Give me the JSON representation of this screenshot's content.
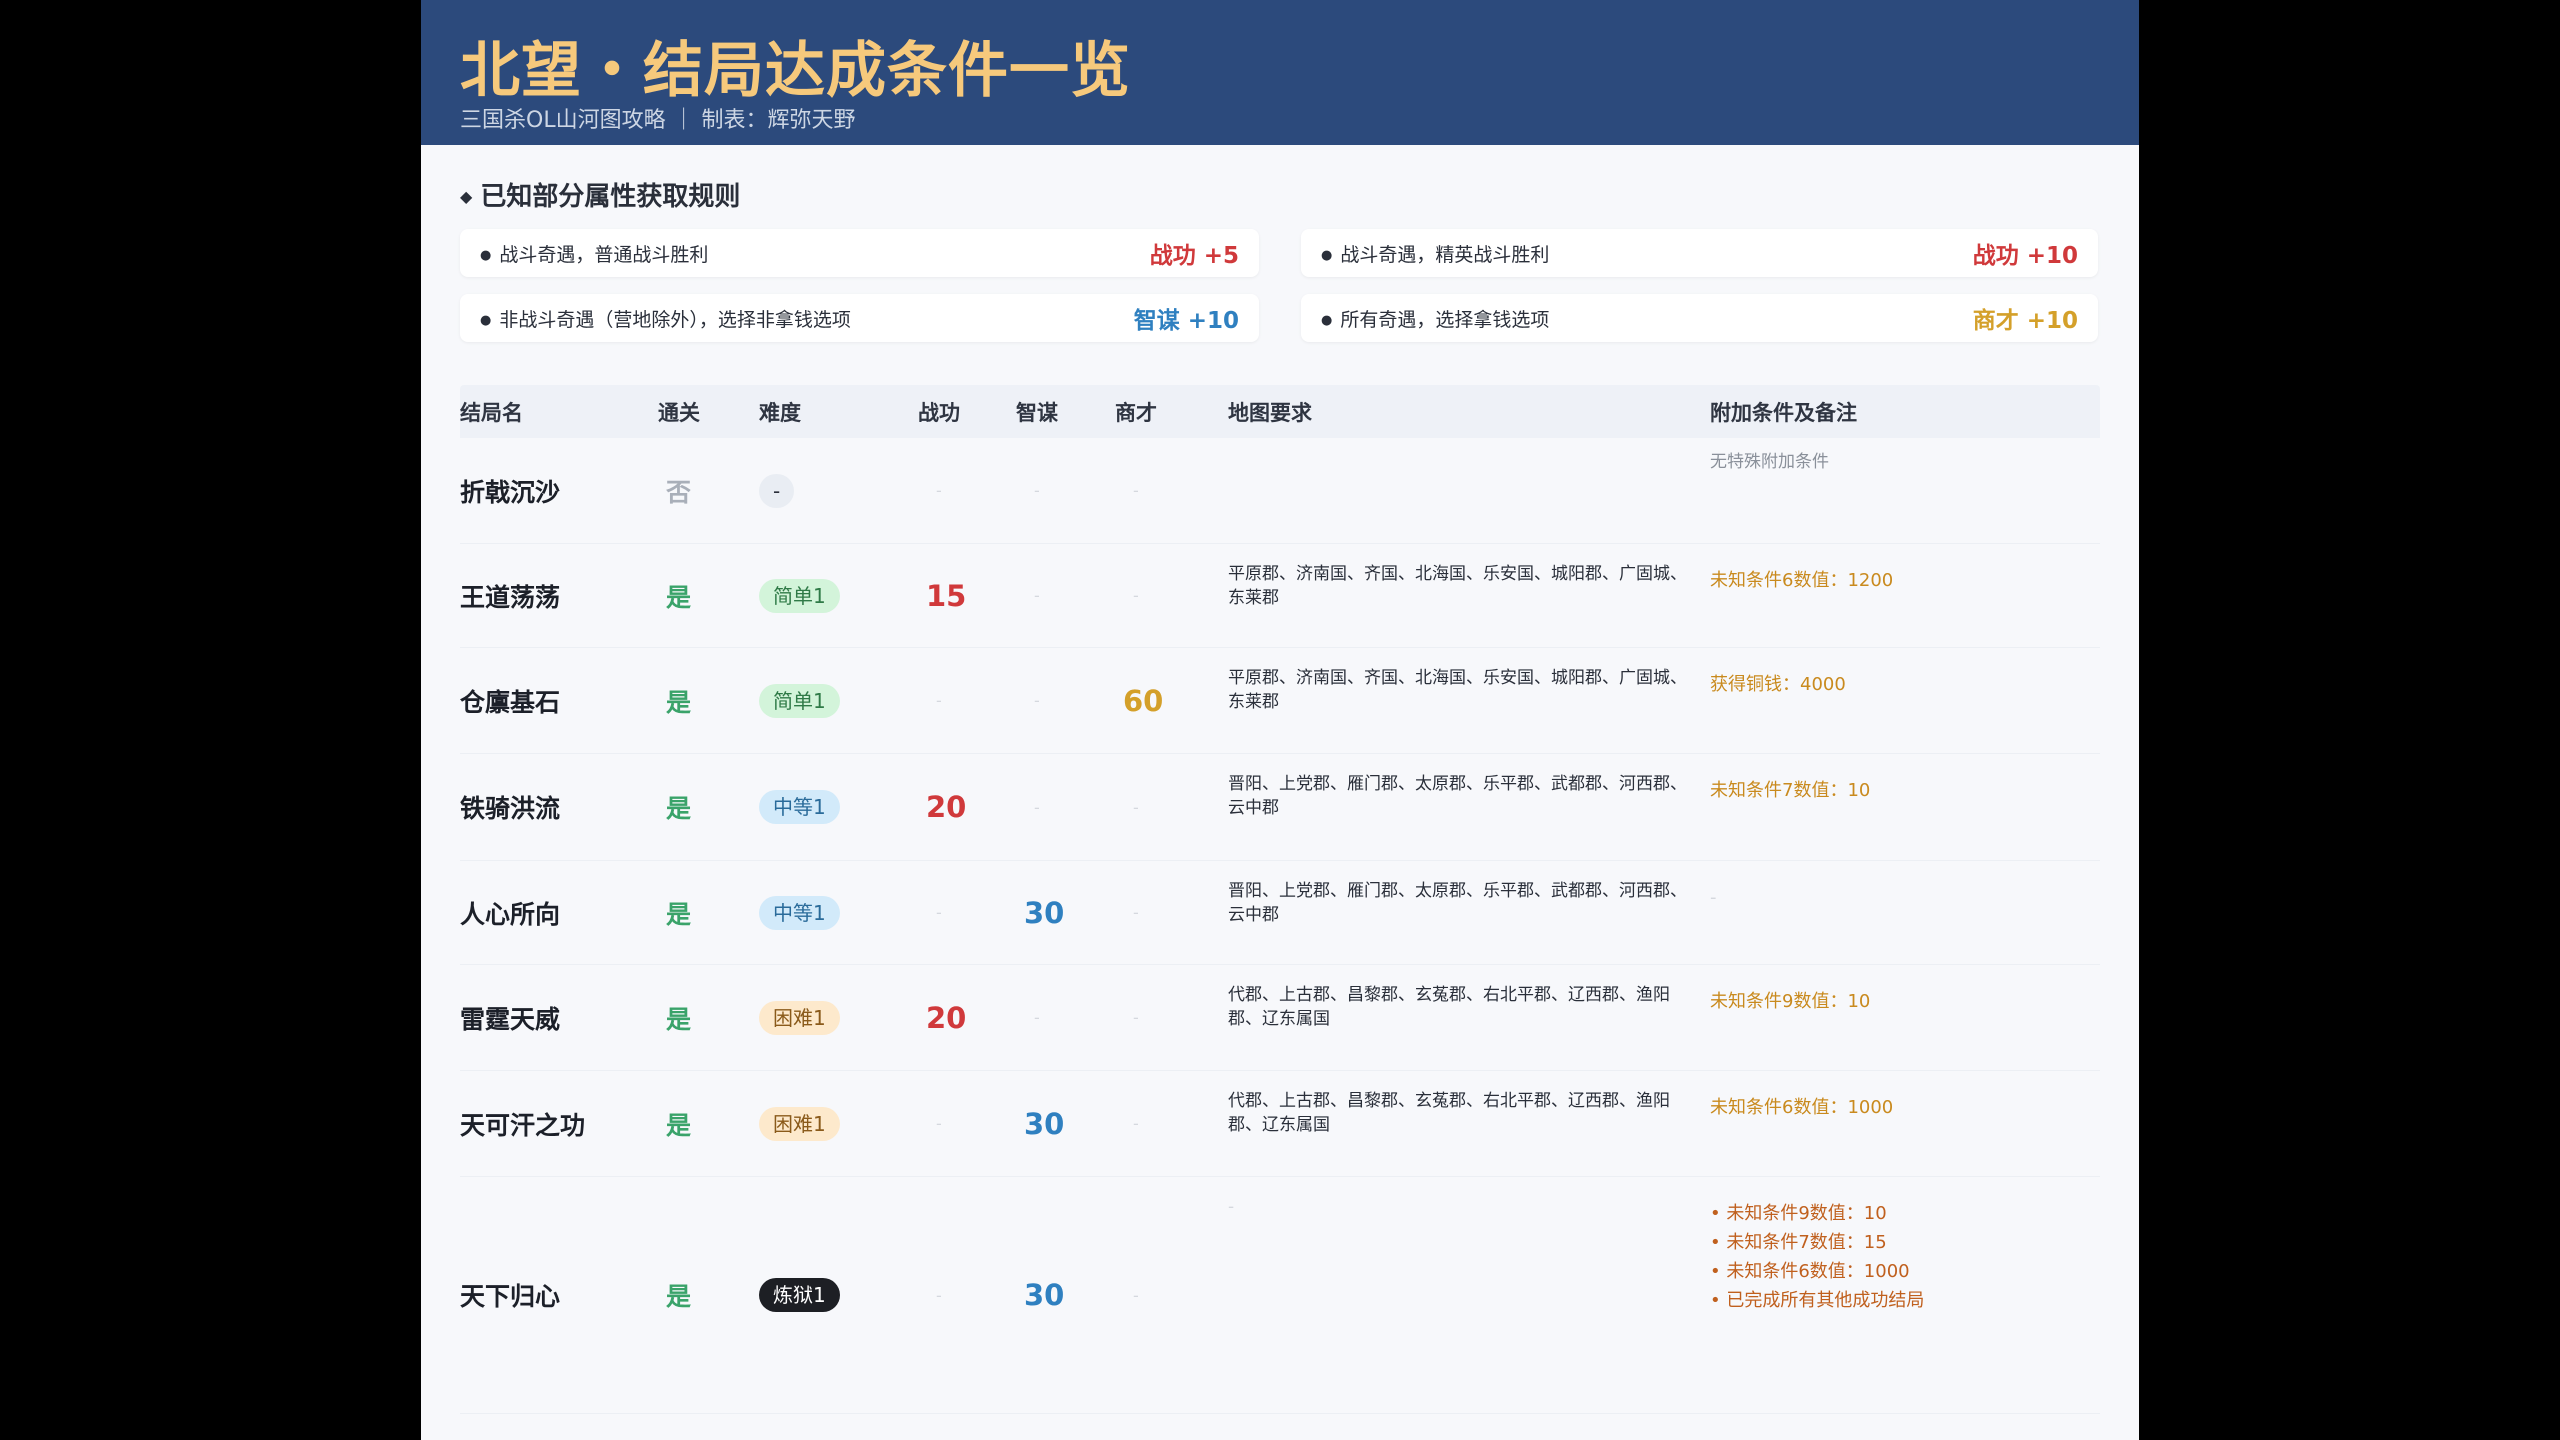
{
  "header": {
    "title": "北望・结局达成条件一览",
    "subtitle": "三国杀OL山河图攻略  ｜  制表：辉弥天野"
  },
  "rules": {
    "heading": "已知部分属性获取规则",
    "items": [
      {
        "text": "战斗奇遇，普通战斗胜利",
        "value": "战功 +5",
        "color": "#d0393b"
      },
      {
        "text": "战斗奇遇，精英战斗胜利",
        "value": "战功 +10",
        "color": "#d0393b"
      },
      {
        "text": "非战斗奇遇（营地除外），选择非拿钱选项",
        "value": "智谋 +10",
        "color": "#2f80c0"
      },
      {
        "text": "所有奇遇，选择拿钱选项",
        "value": "商才 +10",
        "color": "#d4a02a"
      }
    ]
  },
  "table": {
    "columns": [
      "结局名",
      "通关",
      "难度",
      "战功",
      "智谋",
      "商才",
      "地图要求",
      "附加条件及备注"
    ],
    "rows": [
      {
        "name": "折戟沉沙",
        "pass": "否",
        "difficulty": "-",
        "diff_type": "none",
        "zhangong": "-",
        "zhimou": "-",
        "shangcai": "-",
        "map": "",
        "notes": [
          "无特殊附加条件"
        ],
        "notes_style": "muted"
      },
      {
        "name": "王道荡荡",
        "pass": "是",
        "difficulty": "简单1",
        "diff_type": "easy",
        "zhangong": "15",
        "zhimou": "-",
        "shangcai": "-",
        "map": "平原郡、济南国、齐国、北海国、乐安国、城阳郡、广固城、东莱郡",
        "notes": [
          "未知条件6数值：1200"
        ],
        "notes_style": "gold"
      },
      {
        "name": "仓廪基石",
        "pass": "是",
        "difficulty": "简单1",
        "diff_type": "easy",
        "zhangong": "-",
        "zhimou": "-",
        "shangcai": "60",
        "map": "平原郡、济南国、齐国、北海国、乐安国、城阳郡、广固城、东莱郡",
        "notes": [
          "获得铜钱：4000"
        ],
        "notes_style": "gold"
      },
      {
        "name": "铁骑洪流",
        "pass": "是",
        "difficulty": "中等1",
        "diff_type": "medium",
        "zhangong": "20",
        "zhimou": "-",
        "shangcai": "-",
        "map": "晋阳、上党郡、雁门郡、太原郡、乐平郡、武都郡、河西郡、云中郡",
        "notes": [
          "未知条件7数值：10"
        ],
        "notes_style": "gold"
      },
      {
        "name": "人心所向",
        "pass": "是",
        "difficulty": "中等1",
        "diff_type": "medium",
        "zhangong": "-",
        "zhimou": "30",
        "shangcai": "-",
        "map": "晋阳、上党郡、雁门郡、太原郡、乐平郡、武都郡、河西郡、云中郡",
        "notes": [
          "-"
        ],
        "notes_style": "dash"
      },
      {
        "name": "雷霆天威",
        "pass": "是",
        "difficulty": "困难1",
        "diff_type": "hard",
        "zhangong": "20",
        "zhimou": "-",
        "shangcai": "-",
        "map": "代郡、上古郡、昌黎郡、玄菟郡、右北平郡、辽西郡、渔阳郡、辽东属国",
        "notes": [
          "未知条件9数值：10"
        ],
        "notes_style": "gold"
      },
      {
        "name": "天可汗之功",
        "pass": "是",
        "difficulty": "困难1",
        "diff_type": "hard",
        "zhangong": "-",
        "zhimou": "30",
        "shangcai": "-",
        "map": "代郡、上古郡、昌黎郡、玄菟郡、右北平郡、辽西郡、渔阳郡、辽东属国",
        "notes": [
          "未知条件6数值：1000"
        ],
        "notes_style": "gold"
      },
      {
        "name": "天下归心",
        "pass": "是",
        "difficulty": "炼狱1",
        "diff_type": "hell",
        "zhangong": "-",
        "zhimou": "30",
        "shangcai": "-",
        "map": "-",
        "notes": [
          "• 未知条件9数值：10",
          "• 未知条件7数值：15",
          "• 未知条件6数值：1000",
          "• 已完成所有其他成功结局"
        ],
        "notes_style": "orange"
      }
    ]
  },
  "colors": {
    "header_bg": "#2c4a7c",
    "title": "#f6c97c",
    "zhangong": "#d0393b",
    "zhimou": "#2f80c0",
    "shangcai": "#d4a02a",
    "pass_yes": "#3aa36a",
    "pass_no": "#a9afb9",
    "notes_gold": "#c98a1e",
    "notes_orange": "#c0601e"
  }
}
